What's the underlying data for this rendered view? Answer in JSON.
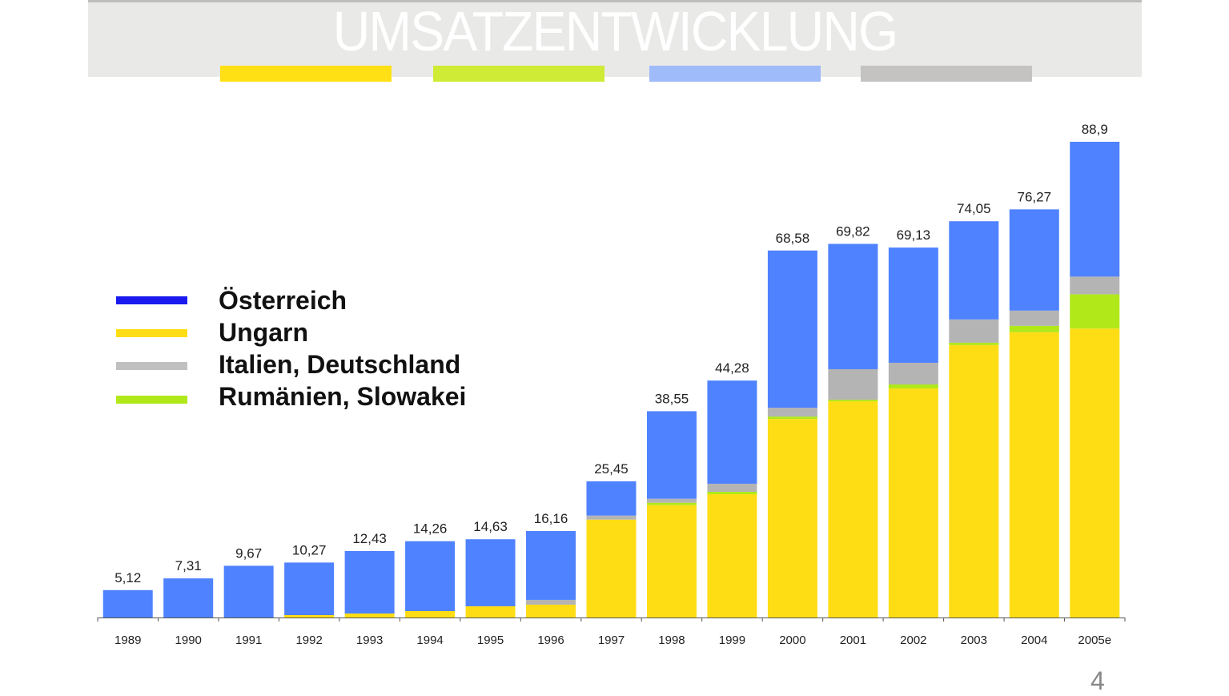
{
  "header": {
    "title": "UMSATZENTWICKLUNG",
    "strip_colors": [
      "#ffe014",
      "#d0eb35",
      "#a0bbf9",
      "#c4c3c1"
    ]
  },
  "page_number": "4",
  "chart_data": {
    "type": "bar",
    "stacked": true,
    "title": "",
    "xlabel": "",
    "ylabel": "",
    "ylim": [
      0,
      88.9
    ],
    "grid": false,
    "legend_placement": "left",
    "categories": [
      "1989",
      "1990",
      "1991",
      "1992",
      "1993",
      "1994",
      "1995",
      "1996",
      "1997",
      "1998",
      "1999",
      "2000",
      "2001",
      "2002",
      "2003",
      "2004",
      "2005e"
    ],
    "totals": [
      "5,12",
      "7,31",
      "9,67",
      "10,27",
      "12,43",
      "14,26",
      "14,63",
      "16,16",
      "25,45",
      "38,55",
      "44,28",
      "68,58",
      "69,82",
      "69,13",
      "74,05",
      "76,27",
      "88,9"
    ],
    "series": [
      {
        "name": "Ungarn",
        "color": "#ffdd15",
        "values": [
          0,
          0,
          0,
          0.45,
          0.75,
          1.2,
          2.1,
          2.4,
          18.3,
          21.0,
          23.05,
          37.1,
          40.4,
          42.8,
          50.9,
          53.3,
          54.0
        ]
      },
      {
        "name": "Rumänien, Slowakei",
        "color": "#b0e81a",
        "values": [
          0,
          0,
          0,
          0,
          0,
          0,
          0,
          0,
          0,
          0.45,
          0.45,
          0.45,
          0.3,
          0.75,
          0.45,
          1.2,
          6.4
        ]
      },
      {
        "name": "Italien, Deutschland",
        "color": "#b4b4b4",
        "values": [
          0,
          0,
          0,
          0,
          0,
          0,
          0,
          0.9,
          0.75,
          0.75,
          1.5,
          1.65,
          5.7,
          4.05,
          4.35,
          2.85,
          3.3
        ]
      },
      {
        "name": "Österreich",
        "color": "#4f82ff",
        "values": [
          5.12,
          7.31,
          9.67,
          9.82,
          11.68,
          13.06,
          12.53,
          12.86,
          6.4,
          16.35,
          19.28,
          29.38,
          23.42,
          21.53,
          18.35,
          18.92,
          25.2
        ]
      }
    ],
    "legend": [
      {
        "name": "Österreich",
        "color": "#1a1aee"
      },
      {
        "name": "Ungarn",
        "color": "#ffdd15"
      },
      {
        "name": "Italien, Deutschland",
        "color": "#c0c0c0"
      },
      {
        "name": "Rumänien, Slowakei",
        "color": "#b0e81a"
      }
    ]
  }
}
